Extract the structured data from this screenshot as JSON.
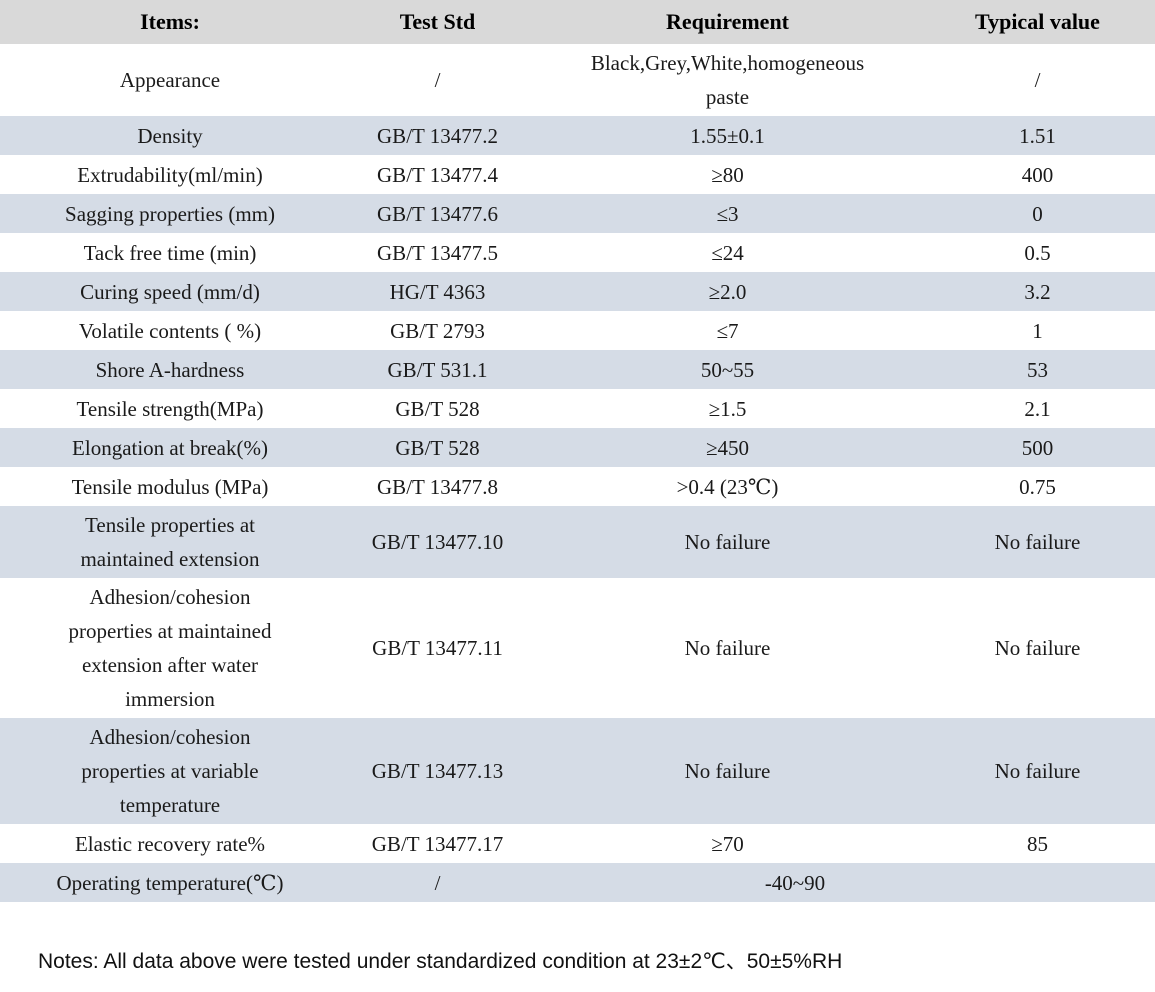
{
  "colors": {
    "header_bg": "#d9d9d9",
    "stripe_bg": "#d5dce6",
    "text": "#1a1a1a"
  },
  "table": {
    "headers": {
      "items": "Items:",
      "test_std": "Test Std",
      "requirement": "Requirement",
      "typical": "Typical value"
    },
    "rows": [
      {
        "item": "Appearance",
        "test_std": "/",
        "requirement": "Black,Grey,White,homogeneous paste",
        "typical": "/"
      },
      {
        "item": "Density",
        "test_std": "GB/T 13477.2",
        "requirement": "1.55±0.1",
        "typical": "1.51"
      },
      {
        "item": "Extrudability(ml/min)",
        "test_std": "GB/T 13477.4",
        "requirement": "≥80",
        "typical": "400"
      },
      {
        "item": "Sagging properties (mm)",
        "test_std": "GB/T 13477.6",
        "requirement": "≤3",
        "typical": "0"
      },
      {
        "item": "Tack free time (min)",
        "test_std": "GB/T 13477.5",
        "requirement": "≤24",
        "typical": "0.5"
      },
      {
        "item": "Curing speed (mm/d)",
        "test_std": "HG/T 4363",
        "requirement": "≥2.0",
        "typical": "3.2"
      },
      {
        "item": "Volatile contents ( %)",
        "test_std": "GB/T 2793",
        "requirement": "≤7",
        "typical": "1"
      },
      {
        "item": "Shore A-hardness",
        "test_std": "GB/T 531.1",
        "requirement": "50~55",
        "typical": "53"
      },
      {
        "item": "Tensile strength(MPa)",
        "test_std": "GB/T 528",
        "requirement": "≥1.5",
        "typical": "2.1"
      },
      {
        "item": "Elongation at break(%)",
        "test_std": "GB/T 528",
        "requirement": "≥450",
        "typical": "500"
      },
      {
        "item": "Tensile modulus (MPa)",
        "test_std": "GB/T 13477.8",
        "requirement": ">0.4 (23℃)",
        "typical": "0.75"
      },
      {
        "item": "Tensile properties at maintained extension",
        "test_std": "GB/T 13477.10",
        "requirement": "No failure",
        "typical": "No failure"
      },
      {
        "item": "Adhesion/cohesion properties at maintained extension after water immersion",
        "test_std": "GB/T 13477.11",
        "requirement": "No failure",
        "typical": "No failure"
      },
      {
        "item": "Adhesion/cohesion properties at variable temperature",
        "test_std": "GB/T 13477.13",
        "requirement": "No failure",
        "typical": "No failure"
      },
      {
        "item": "Elastic recovery rate%",
        "test_std": "GB/T 13477.17",
        "requirement": "≥70",
        "typical": "85"
      },
      {
        "item": "Operating temperature(℃)",
        "test_std": "/",
        "requirement": "-40~90"
      }
    ]
  },
  "notes": "Notes: All data above were tested under standardized condition at 23±2℃、50±5%RH"
}
